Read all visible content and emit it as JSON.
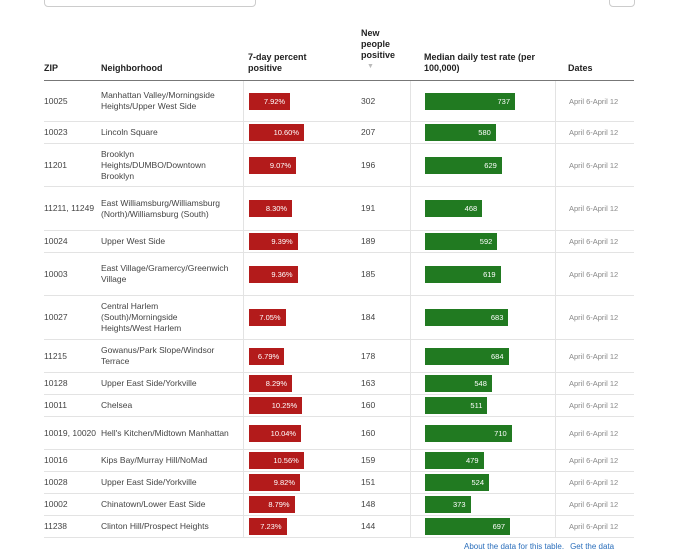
{
  "columns": {
    "zip": "ZIP",
    "neighborhood": "Neighborhood",
    "positive_pct": "7-day percent positive",
    "new_positive": "New people positive",
    "test_rate": "Median daily test rate (per 100,000)",
    "dates": "Dates"
  },
  "sort_icon": "sort-down-arrow",
  "colors": {
    "positive_bar": "#b31b1b",
    "test_rate_bar": "#217a21"
  },
  "rows": [
    {
      "zip": "10025",
      "neighborhood": "Manhattan Valley/Morningside Heights/Upper West Side",
      "pct": 7.92,
      "pct_label": "7.92%",
      "new": "302",
      "rate": 737,
      "rate_label": "737",
      "dates": "April 6-April 12"
    },
    {
      "zip": "10023",
      "neighborhood": "Lincoln Square",
      "pct": 10.6,
      "pct_label": "10.60%",
      "new": "207",
      "rate": 580,
      "rate_label": "580",
      "dates": "April 6-April 12"
    },
    {
      "zip": "11201",
      "neighborhood": "Brooklyn Heights/DUMBO/Downtown Brooklyn",
      "pct": 9.07,
      "pct_label": "9.07%",
      "new": "196",
      "rate": 629,
      "rate_label": "629",
      "dates": "April 6-April 12"
    },
    {
      "zip": "11211, 11249",
      "neighborhood": "East Williamsburg/Williamsburg (North)/Williamsburg (South)",
      "pct": 8.3,
      "pct_label": "8.30%",
      "new": "191",
      "rate": 468,
      "rate_label": "468",
      "dates": "April 6-April 12"
    },
    {
      "zip": "10024",
      "neighborhood": "Upper West Side",
      "pct": 9.39,
      "pct_label": "9.39%",
      "new": "189",
      "rate": 592,
      "rate_label": "592",
      "dates": "April 6-April 12"
    },
    {
      "zip": "10003",
      "neighborhood": "East Village/Gramercy/Greenwich Village",
      "pct": 9.36,
      "pct_label": "9.36%",
      "new": "185",
      "rate": 619,
      "rate_label": "619",
      "dates": "April 6-April 12"
    },
    {
      "zip": "10027",
      "neighborhood": "Central Harlem (South)/Morningside Heights/West Harlem",
      "pct": 7.05,
      "pct_label": "7.05%",
      "new": "184",
      "rate": 683,
      "rate_label": "683",
      "dates": "April 6-April 12"
    },
    {
      "zip": "11215",
      "neighborhood": "Gowanus/Park Slope/Windsor Terrace",
      "pct": 6.79,
      "pct_label": "6.79%",
      "new": "178",
      "rate": 684,
      "rate_label": "684",
      "dates": "April 6-April 12"
    },
    {
      "zip": "10128",
      "neighborhood": "Upper East Side/Yorkville",
      "pct": 8.29,
      "pct_label": "8.29%",
      "new": "163",
      "rate": 548,
      "rate_label": "548",
      "dates": "April 6-April 12"
    },
    {
      "zip": "10011",
      "neighborhood": "Chelsea",
      "pct": 10.25,
      "pct_label": "10.25%",
      "new": "160",
      "rate": 511,
      "rate_label": "511",
      "dates": "April 6-April 12"
    },
    {
      "zip": "10019, 10020",
      "neighborhood": "Hell's Kitchen/Midtown Manhattan",
      "pct": 10.04,
      "pct_label": "10.04%",
      "new": "160",
      "rate": 710,
      "rate_label": "710",
      "dates": "April 6-April 12"
    },
    {
      "zip": "10016",
      "neighborhood": "Kips Bay/Murray Hill/NoMad",
      "pct": 10.56,
      "pct_label": "10.56%",
      "new": "159",
      "rate": 479,
      "rate_label": "479",
      "dates": "April 6-April 12"
    },
    {
      "zip": "10028",
      "neighborhood": "Upper East Side/Yorkville",
      "pct": 9.82,
      "pct_label": "9.82%",
      "new": "151",
      "rate": 524,
      "rate_label": "524",
      "dates": "April 6-April 12"
    },
    {
      "zip": "10002",
      "neighborhood": "Chinatown/Lower East Side",
      "pct": 8.79,
      "pct_label": "8.79%",
      "new": "148",
      "rate": 373,
      "rate_label": "373",
      "dates": "April 6-April 12"
    },
    {
      "zip": "11238",
      "neighborhood": "Clinton Hill/Prospect Heights",
      "pct": 7.23,
      "pct_label": "7.23%",
      "new": "144",
      "rate": 697,
      "rate_label": "697",
      "dates": "April 6-April 12"
    }
  ],
  "footer": {
    "about_link": "About the data for this table.",
    "get_data_link": "Get the data"
  }
}
